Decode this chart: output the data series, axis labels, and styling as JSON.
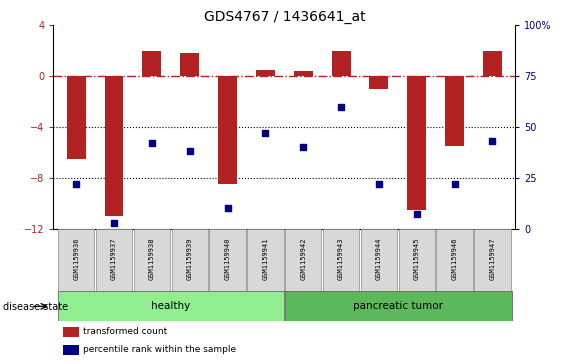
{
  "title": "GDS4767 / 1436641_at",
  "samples": [
    "GSM1159936",
    "GSM1159937",
    "GSM1159938",
    "GSM1159939",
    "GSM1159940",
    "GSM1159941",
    "GSM1159942",
    "GSM1159943",
    "GSM1159944",
    "GSM1159945",
    "GSM1159946",
    "GSM1159947"
  ],
  "transformed_count": [
    -6.5,
    -11.0,
    2.0,
    1.8,
    -8.5,
    0.5,
    0.4,
    2.0,
    -1.0,
    -10.5,
    -5.5,
    2.0
  ],
  "percentile_rank": [
    22,
    3,
    42,
    38,
    10,
    47,
    40,
    60,
    22,
    7,
    22,
    43
  ],
  "bar_color": "#b22222",
  "scatter_color": "#000080",
  "healthy_color": "#90ee90",
  "tumor_color": "#5cb85c",
  "healthy_label": "healthy",
  "tumor_label": "pancreatic tumor",
  "disease_state_label": "disease state",
  "left_ylim": [
    -12,
    4
  ],
  "right_ylim": [
    0,
    100
  ],
  "left_yticks": [
    -12,
    -8,
    -4,
    0,
    4
  ],
  "right_yticks": [
    0,
    25,
    50,
    75,
    100
  ],
  "right_yticklabels": [
    "0",
    "25",
    "50",
    "75",
    "100%"
  ],
  "hline_y": 0,
  "dotted_lines": [
    -4,
    -8
  ],
  "bar_width": 0.5,
  "n_healthy": 6,
  "n_tumor": 6
}
